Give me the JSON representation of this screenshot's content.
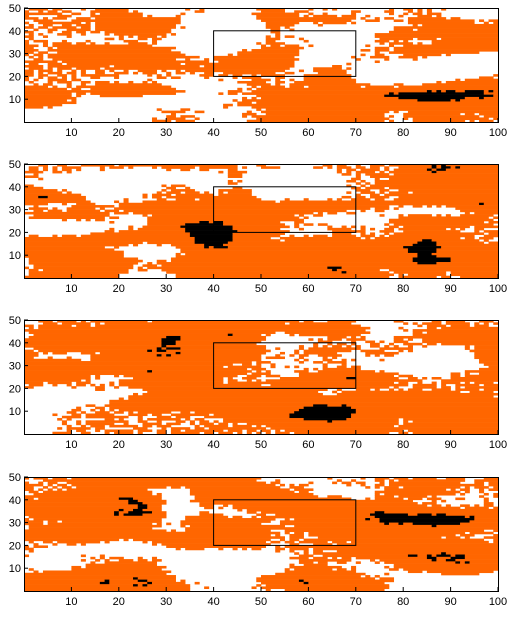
{
  "colors": {
    "orange": "#ff6600",
    "black": "#000000",
    "white": "#ffffff",
    "frame": "#000000"
  },
  "panels": [
    {
      "id": "panel-1",
      "xlim": [
        0,
        100
      ],
      "ylim": [
        0,
        50
      ],
      "xticks": [
        "10",
        "20",
        "30",
        "40",
        "50",
        "60",
        "70",
        "80",
        "90",
        "100"
      ],
      "yticks": [
        "10",
        "20",
        "30",
        "40",
        "50"
      ],
      "highlight_box": {
        "x0": 40,
        "x1": 70,
        "y0": 20,
        "y1": 40
      },
      "seed": 11
    },
    {
      "id": "panel-2",
      "xlim": [
        0,
        100
      ],
      "ylim": [
        0,
        50
      ],
      "xticks": [
        "10",
        "20",
        "30",
        "40",
        "50",
        "60",
        "70",
        "80",
        "90",
        "100"
      ],
      "yticks": [
        "10",
        "20",
        "30",
        "40",
        "50"
      ],
      "highlight_box": {
        "x0": 40,
        "x1": 70,
        "y0": 20,
        "y1": 40
      },
      "seed": 23
    },
    {
      "id": "panel-3",
      "xlim": [
        0,
        100
      ],
      "ylim": [
        0,
        50
      ],
      "xticks": [
        "10",
        "20",
        "30",
        "40",
        "50",
        "60",
        "70",
        "80",
        "90",
        "100"
      ],
      "yticks": [
        "10",
        "20",
        "30",
        "40",
        "50"
      ],
      "highlight_box": {
        "x0": 40,
        "x1": 70,
        "y0": 20,
        "y1": 40
      },
      "seed": 37
    },
    {
      "id": "panel-4",
      "xlim": [
        0,
        100
      ],
      "ylim": [
        0,
        50
      ],
      "xticks": [
        "10",
        "20",
        "30",
        "40",
        "50",
        "60",
        "70",
        "80",
        "90",
        "100"
      ],
      "yticks": [
        "10",
        "20",
        "30",
        "40",
        "50"
      ],
      "highlight_box": {
        "x0": 40,
        "x1": 70,
        "y0": 20,
        "y1": 40
      },
      "seed": 53
    }
  ]
}
